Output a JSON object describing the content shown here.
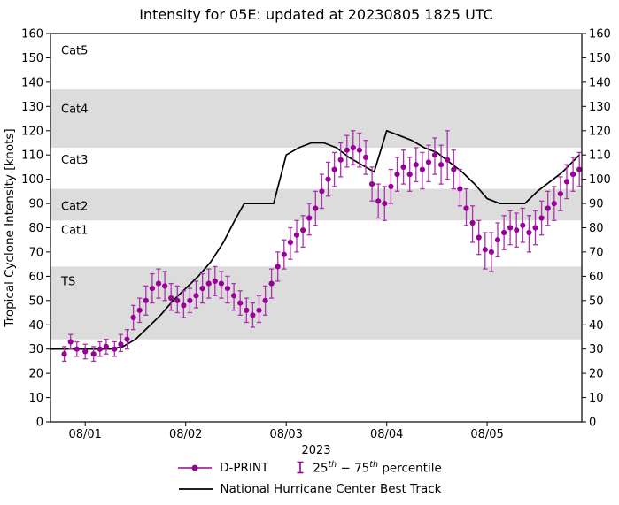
{
  "title": "Intensity for 05E: updated at 20230805 1825 UTC",
  "legend": {
    "dprint": "D-PRINT",
    "pct_a": "25",
    "pct_sup_a": "th",
    "pct_b": " − 75",
    "pct_sup_b": "th",
    "pct_c": " percentile",
    "best_track": "National Hurricane Center Best Track"
  },
  "colors": {
    "band": "#dcdcdc",
    "dot": "#990099",
    "errorbar": "#aa33aa",
    "best_track": "#000000",
    "axis": "#000000",
    "background": "#ffffff"
  },
  "chart_data": {
    "type": "scatter",
    "title": "Intensity for 05E: updated at 20230805 1825 UTC",
    "xlabel": "2023",
    "ylabel": "Tropical Cyclone Intensity [knots]",
    "ylim": [
      0,
      160
    ],
    "ytick_step": 10,
    "x_domain_hours": [
      -8.3,
      118.6
    ],
    "xticks": [
      {
        "t": 0,
        "label": "08/01"
      },
      {
        "t": 24,
        "label": "08/02"
      },
      {
        "t": 48,
        "label": "08/03"
      },
      {
        "t": 72,
        "label": "08/04"
      },
      {
        "t": 96,
        "label": "08/05"
      }
    ],
    "category_bands": [
      {
        "label": "TS",
        "from": 34,
        "to": 64,
        "shaded": true,
        "label_at": 58
      },
      {
        "label": "Cat1",
        "from": 64,
        "to": 83,
        "shaded": false,
        "label_at": 79
      },
      {
        "label": "Cat2",
        "from": 83,
        "to": 96,
        "shaded": true,
        "label_at": 89
      },
      {
        "label": "Cat3",
        "from": 96,
        "to": 113,
        "shaded": false,
        "label_at": 108
      },
      {
        "label": "Cat4",
        "from": 113,
        "to": 137,
        "shaded": true,
        "label_at": 129
      },
      {
        "label": "Cat5",
        "from": 137,
        "to": 160,
        "shaded": false,
        "label_at": 153
      }
    ],
    "dprint": {
      "name": "D-PRINT",
      "units": "knots",
      "time_basis": "hours since 2023-08-01 00Z",
      "point_format": [
        "t",
        "value",
        "p25",
        "p75"
      ],
      "points": [
        [
          -5,
          28,
          25,
          31
        ],
        [
          -3.5,
          33,
          30,
          36
        ],
        [
          -2,
          30,
          27,
          33
        ],
        [
          0,
          29,
          26,
          32
        ],
        [
          2,
          28,
          25,
          31
        ],
        [
          3.5,
          30,
          27,
          33
        ],
        [
          5,
          31,
          28,
          34
        ],
        [
          7,
          30,
          27,
          33
        ],
        [
          8.5,
          32,
          29,
          36
        ],
        [
          10,
          34,
          30,
          38
        ],
        [
          11.5,
          43,
          38,
          48
        ],
        [
          13,
          46,
          41,
          51
        ],
        [
          14.5,
          50,
          44,
          56
        ],
        [
          16,
          55,
          49,
          61
        ],
        [
          17.5,
          57,
          51,
          63
        ],
        [
          19,
          56,
          50,
          62
        ],
        [
          20.5,
          51,
          46,
          57
        ],
        [
          22,
          50,
          45,
          56
        ],
        [
          23.5,
          48,
          43,
          54
        ],
        [
          25,
          50,
          45,
          55
        ],
        [
          26.5,
          52,
          47,
          58
        ],
        [
          28,
          55,
          49,
          61
        ],
        [
          29.5,
          57,
          51,
          63
        ],
        [
          31,
          58,
          52,
          64
        ],
        [
          32.5,
          57,
          51,
          62
        ],
        [
          34,
          55,
          49,
          60
        ],
        [
          35.5,
          52,
          46,
          57
        ],
        [
          37,
          49,
          44,
          54
        ],
        [
          38.5,
          46,
          41,
          51
        ],
        [
          40,
          44,
          39,
          49
        ],
        [
          41.5,
          46,
          41,
          52
        ],
        [
          43,
          50,
          44,
          56
        ],
        [
          44.5,
          57,
          51,
          63
        ],
        [
          46,
          64,
          58,
          70
        ],
        [
          47.5,
          69,
          63,
          75
        ],
        [
          49,
          74,
          67,
          80
        ],
        [
          50.5,
          77,
          70,
          83
        ],
        [
          52,
          79,
          72,
          85
        ],
        [
          53.5,
          84,
          77,
          90
        ],
        [
          55,
          88,
          81,
          95
        ],
        [
          56.5,
          95,
          88,
          102
        ],
        [
          58,
          100,
          93,
          107
        ],
        [
          59.5,
          104,
          97,
          111
        ],
        [
          61,
          108,
          101,
          115
        ],
        [
          62.5,
          112,
          105,
          118
        ],
        [
          64,
          113,
          106,
          120
        ],
        [
          65.5,
          112,
          105,
          119
        ],
        [
          67,
          109,
          102,
          116
        ],
        [
          68.5,
          98,
          91,
          105
        ],
        [
          70,
          91,
          84,
          98
        ],
        [
          71.5,
          90,
          83,
          97
        ],
        [
          73,
          97,
          90,
          104
        ],
        [
          74.5,
          102,
          95,
          109
        ],
        [
          76,
          105,
          98,
          112
        ],
        [
          77.5,
          102,
          95,
          109
        ],
        [
          79,
          106,
          99,
          113
        ],
        [
          80.5,
          104,
          96,
          111
        ],
        [
          82,
          107,
          99,
          114
        ],
        [
          83.5,
          110,
          102,
          117
        ],
        [
          85,
          106,
          98,
          114
        ],
        [
          86.5,
          108,
          100,
          120
        ],
        [
          88,
          104,
          96,
          112
        ],
        [
          89.5,
          96,
          89,
          104
        ],
        [
          91,
          88,
          81,
          96
        ],
        [
          92.5,
          82,
          74,
          89
        ],
        [
          94,
          76,
          69,
          83
        ],
        [
          95.5,
          71,
          63,
          78
        ],
        [
          97,
          70,
          62,
          78
        ],
        [
          98.5,
          75,
          68,
          82
        ],
        [
          100,
          78,
          71,
          85
        ],
        [
          101.5,
          80,
          73,
          87
        ],
        [
          103,
          79,
          72,
          86
        ],
        [
          104.5,
          81,
          74,
          88
        ],
        [
          106,
          78,
          70,
          85
        ],
        [
          107.5,
          80,
          73,
          87
        ],
        [
          109,
          84,
          77,
          91
        ],
        [
          110.5,
          88,
          81,
          95
        ],
        [
          112,
          90,
          83,
          97
        ],
        [
          113.5,
          94,
          87,
          101
        ],
        [
          115,
          99,
          92,
          106
        ],
        [
          116.5,
          102,
          95,
          109
        ],
        [
          118,
          104,
          97,
          111
        ]
      ]
    },
    "best_track": {
      "name": "National Hurricane Center Best Track",
      "units": "knots",
      "time_basis": "hours since 2023-08-01 00Z",
      "point_format": [
        "t",
        "value"
      ],
      "points": [
        [
          -8.3,
          30
        ],
        [
          6,
          30
        ],
        [
          9,
          31
        ],
        [
          12,
          34
        ],
        [
          15,
          39
        ],
        [
          18,
          44
        ],
        [
          21,
          50
        ],
        [
          24,
          55
        ],
        [
          27,
          60
        ],
        [
          30,
          66
        ],
        [
          33,
          74
        ],
        [
          36,
          84
        ],
        [
          38,
          90
        ],
        [
          45,
          90
        ],
        [
          48,
          110
        ],
        [
          51,
          113
        ],
        [
          54,
          115
        ],
        [
          57,
          115
        ],
        [
          60,
          113
        ],
        [
          63,
          109
        ],
        [
          66,
          106
        ],
        [
          69,
          103
        ],
        [
          72,
          120
        ],
        [
          75,
          118
        ],
        [
          78,
          116
        ],
        [
          81,
          113
        ],
        [
          84,
          111
        ],
        [
          87,
          107
        ],
        [
          90,
          103
        ],
        [
          93,
          98
        ],
        [
          96,
          92
        ],
        [
          99,
          90
        ],
        [
          105,
          90
        ],
        [
          108,
          95
        ],
        [
          111,
          99
        ],
        [
          114,
          103
        ],
        [
          118,
          110
        ]
      ]
    }
  }
}
